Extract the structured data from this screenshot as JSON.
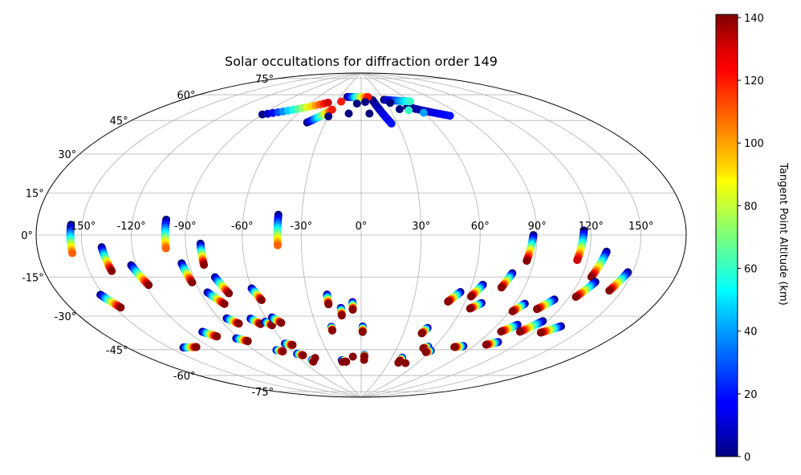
{
  "chart_data": {
    "type": "scatter",
    "projection": "hammer",
    "title": "Solar occultations for diffraction order 149",
    "grid": true,
    "lon_tick_labels": [
      "-150°",
      "-120°",
      "-90°",
      "-60°",
      "-30°",
      "0°",
      "30°",
      "60°",
      "90°",
      "120°",
      "150°"
    ],
    "lat_tick_labels": [
      "-75°",
      "-60°",
      "-45°",
      "-30°",
      "-15°",
      "0°",
      "15°",
      "30°",
      "45°",
      "60°",
      "75°"
    ],
    "colorbar": {
      "label": "Tangent Point Altitude (km)",
      "colormap": "jet",
      "range": [
        0,
        141
      ],
      "tick_labels": [
        "0",
        "20",
        "40",
        "60",
        "80",
        "100",
        "120",
        "140"
      ]
    },
    "series": [
      {
        "lon_start": -157,
        "lat_start": 4,
        "lon_end": -157,
        "lat_end": -7,
        "alt_start": 0,
        "alt_end": 110
      },
      {
        "lon_start": -138,
        "lat_start": -5,
        "lon_end": -136,
        "lat_end": -15,
        "alt_start": 0,
        "alt_end": 140
      },
      {
        "lon_start": -152,
        "lat_start": -24,
        "lon_end": -146,
        "lat_end": -30,
        "alt_start": 0,
        "alt_end": 140
      },
      {
        "lon_start": -123,
        "lat_start": -13,
        "lon_end": -118,
        "lat_end": -22,
        "alt_start": 0,
        "alt_end": 140
      },
      {
        "lon_start": -101,
        "lat_start": 7,
        "lon_end": -101,
        "lat_end": -6,
        "alt_start": 0,
        "alt_end": 110
      },
      {
        "lon_start": -94,
        "lat_start": -13,
        "lon_end": -92,
        "lat_end": -22,
        "alt_start": 0,
        "alt_end": 140
      },
      {
        "lon_start": -82,
        "lat_start": -4,
        "lon_end": -82,
        "lat_end": -14,
        "alt_start": 0,
        "alt_end": 140
      },
      {
        "lon_start": -86,
        "lat_start": -27,
        "lon_end": -80,
        "lat_end": -33,
        "alt_start": 0,
        "alt_end": 140
      },
      {
        "lon_start": -78,
        "lat_start": -20,
        "lon_end": -74,
        "lat_end": -28,
        "alt_start": 0,
        "alt_end": 140
      },
      {
        "lon_start": -60,
        "lat_start": -26,
        "lon_end": -57,
        "lat_end": -32,
        "alt_start": 0,
        "alt_end": 140
      },
      {
        "lon_start": -42,
        "lat_start": 10,
        "lon_end": -42,
        "lat_end": -5,
        "alt_start": 0,
        "alt_end": 110
      },
      {
        "lon_start": -19,
        "lat_start": -30,
        "lon_end": -19,
        "lat_end": -35,
        "alt_start": 0,
        "alt_end": 140
      },
      {
        "lon_start": -12,
        "lat_start": -37,
        "lon_end": -12,
        "lat_end": -41,
        "alt_start": 0,
        "alt_end": 140
      },
      {
        "lon_start": -5,
        "lat_start": -34,
        "lon_end": -5,
        "lat_end": -38,
        "alt_start": 0,
        "alt_end": 140
      },
      {
        "lon_start": 88,
        "lat_start": 0,
        "lon_end": 86,
        "lat_end": -12,
        "alt_start": 0,
        "alt_end": 140
      },
      {
        "lon_start": 116,
        "lat_start": 2,
        "lon_end": 114,
        "lat_end": -11,
        "alt_start": 0,
        "alt_end": 130
      },
      {
        "lon_start": 80,
        "lat_start": -18,
        "lon_end": 77,
        "lat_end": -25,
        "alt_start": 0,
        "alt_end": 140
      },
      {
        "lon_start": 55,
        "lat_start": -28,
        "lon_end": 50,
        "lat_end": -33,
        "alt_start": 0,
        "alt_end": 140
      },
      {
        "lon_start": 66,
        "lat_start": -24,
        "lon_end": 62,
        "lat_end": -30,
        "alt_start": 0,
        "alt_end": 140
      },
      {
        "lon_start": 70,
        "lat_start": -33,
        "lon_end": 65,
        "lat_end": -36,
        "alt_start": 0,
        "alt_end": 140
      },
      {
        "lon_start": 96,
        "lat_start": -32,
        "lon_end": 92,
        "lat_end": -36,
        "alt_start": 0,
        "alt_end": 140
      },
      {
        "lon_start": 112,
        "lat_start": -29,
        "lon_end": 106,
        "lat_end": -34,
        "alt_start": 0,
        "alt_end": 140
      },
      {
        "lon_start": 130,
        "lat_start": -7,
        "lon_end": 126,
        "lat_end": -18,
        "alt_start": 0,
        "alt_end": 140
      },
      {
        "lon_start": 130,
        "lat_start": -20,
        "lon_end": 124,
        "lat_end": -27,
        "alt_start": 0,
        "alt_end": 140
      },
      {
        "lon_start": 147,
        "lat_start": -15,
        "lon_end": 142,
        "lat_end": -23,
        "alt_start": 0,
        "alt_end": 140
      },
      {
        "lon_start": 133,
        "lat_start": -40,
        "lon_end": 125,
        "lat_end": -44,
        "alt_start": 0,
        "alt_end": 140
      },
      {
        "lon_start": 117,
        "lat_start": -39,
        "lon_end": 110,
        "lat_end": -45,
        "alt_start": 0,
        "alt_end": 140
      },
      {
        "lon_start": 103,
        "lat_start": -42,
        "lon_end": 97,
        "lat_end": -46,
        "alt_start": 0,
        "alt_end": 140
      },
      {
        "lon_start": 104,
        "lat_start": -51,
        "lon_end": 98,
        "lat_end": -53,
        "alt_start": 0,
        "alt_end": 140
      },
      {
        "lon_start": 82,
        "lat_start": -55,
        "lon_end": 76,
        "lat_end": -56,
        "alt_start": 0,
        "alt_end": 140
      },
      {
        "lon_start": 45,
        "lat_start": -47,
        "lon_end": 43,
        "lat_end": -50,
        "alt_start": 0,
        "alt_end": 140
      },
      {
        "lon_start": 55,
        "lat_start": -57,
        "lon_end": 52,
        "lat_end": -58,
        "alt_start": 0,
        "alt_end": 140
      },
      {
        "lon_start": -110,
        "lat_start": -45,
        "lon_end": -104,
        "lat_end": -48,
        "alt_start": 0,
        "alt_end": 140
      },
      {
        "lon_start": -85,
        "lat_start": -40,
        "lon_end": -80,
        "lat_end": -43,
        "alt_start": 0,
        "alt_end": 140
      },
      {
        "lon_start": -70,
        "lat_start": -41,
        "lon_end": -66,
        "lat_end": -44,
        "alt_start": 0,
        "alt_end": 140
      },
      {
        "lon_start": -62,
        "lat_start": -43,
        "lon_end": -59,
        "lat_end": -45,
        "alt_start": 0,
        "alt_end": 140
      },
      {
        "lon_start": -56,
        "lat_start": -41,
        "lon_end": -52,
        "lat_end": -44,
        "alt_start": 0,
        "alt_end": 140
      },
      {
        "lon_start": -140,
        "lat_start": -50,
        "lon_end": -130,
        "lat_end": -51,
        "alt_start": 0,
        "alt_end": 140
      },
      {
        "lon_start": -92,
        "lat_start": -50,
        "lon_end": -86,
        "lat_end": -52,
        "alt_start": 0,
        "alt_end": 140
      },
      {
        "lon_start": -60,
        "lat_start": -55,
        "lon_end": -55,
        "lat_end": -56,
        "alt_start": 0,
        "alt_end": 140
      },
      {
        "lon_start": -20,
        "lat_start": -47,
        "lon_end": -20,
        "lat_end": -49,
        "alt_start": 0,
        "alt_end": 140
      },
      {
        "lon_start": 1,
        "lat_start": -47,
        "lon_end": 1,
        "lat_end": -50,
        "alt_start": 0,
        "alt_end": 140
      },
      {
        "lon_start": -72,
        "lat_start": -58,
        "lon_end": -68,
        "lat_end": -59,
        "alt_start": 0,
        "alt_end": 140
      },
      {
        "lon_start": -58,
        "lat_start": -61,
        "lon_end": -54,
        "lat_end": -62,
        "alt_start": 0,
        "alt_end": 140
      },
      {
        "lon_start": 60,
        "lat_start": -59,
        "lon_end": 57,
        "lat_end": -60,
        "alt_start": 0,
        "alt_end": 140
      },
      {
        "lon_start": -50,
        "lat_start": -65,
        "lon_end": -50,
        "lat_end": -66,
        "alt_start": 0,
        "alt_end": 140
      },
      {
        "lon_start": 3,
        "lat_start": -63,
        "lon_end": 3,
        "lat_end": -64,
        "alt_start": 0,
        "alt_end": 140
      },
      {
        "lon_start": -20,
        "lat_start": -66,
        "lon_end": -16,
        "lat_end": -67,
        "alt_start": 0,
        "alt_end": 140
      },
      {
        "lon_start": 40,
        "lat_start": -64,
        "lon_end": 40,
        "lat_end": -66,
        "alt_start": 0,
        "alt_end": 140
      },
      {
        "lon_start": -90,
        "lat_start": 60,
        "lon_end": -40,
        "lat_end": 70,
        "alt_start": 0,
        "alt_end": 130
      },
      {
        "lon_start": -45,
        "lat_start": 58,
        "lon_end": -30,
        "lat_end": 66,
        "alt_start": 0,
        "alt_end": 120
      },
      {
        "lon_start": 15,
        "lat_start": 72,
        "lon_end": 25,
        "lat_end": 58,
        "alt_start": 0,
        "alt_end": 20
      },
      {
        "lon_start": 50,
        "lat_start": 67,
        "lon_end": 80,
        "lat_end": 60,
        "alt_start": 0,
        "alt_end": 20
      },
      {
        "lon_start": -20,
        "lat_start": 74,
        "lon_end": 10,
        "lat_end": 74,
        "alt_start": 0,
        "alt_end": 120
      },
      {
        "lon_start": 30,
        "lat_start": 72,
        "lon_end": 60,
        "lat_end": 70,
        "alt_start": 0,
        "alt_end": 60
      }
    ],
    "points": [
      {
        "lon": -45,
        "lat": -64,
        "alt": 140
      },
      {
        "lon": -20,
        "lat": -67,
        "alt": 140
      },
      {
        "lon": -8,
        "lat": -64,
        "alt": 140
      },
      {
        "lon": 3,
        "lat": -66,
        "alt": 140
      },
      {
        "lon": 40,
        "lat": -67,
        "alt": 140
      },
      {
        "lon": 48,
        "lat": -67,
        "alt": 140
      },
      {
        "lon": -12,
        "lat": 64,
        "alt": 0
      },
      {
        "lon": 8,
        "lat": 64,
        "alt": 0
      },
      {
        "lon": 40,
        "lat": 66,
        "alt": 0
      },
      {
        "lon": 48,
        "lat": 65,
        "alt": 60
      },
      {
        "lon": 60,
        "lat": 63,
        "alt": 40
      },
      {
        "lon": -30,
        "lat": 62,
        "alt": 0
      },
      {
        "lon": -5,
        "lat": 70,
        "alt": 0
      },
      {
        "lon": 5,
        "lat": 71,
        "alt": 0
      },
      {
        "lon": 35,
        "lat": 70,
        "alt": 0
      },
      {
        "lon": -25,
        "lat": 71,
        "alt": 120
      }
    ]
  }
}
